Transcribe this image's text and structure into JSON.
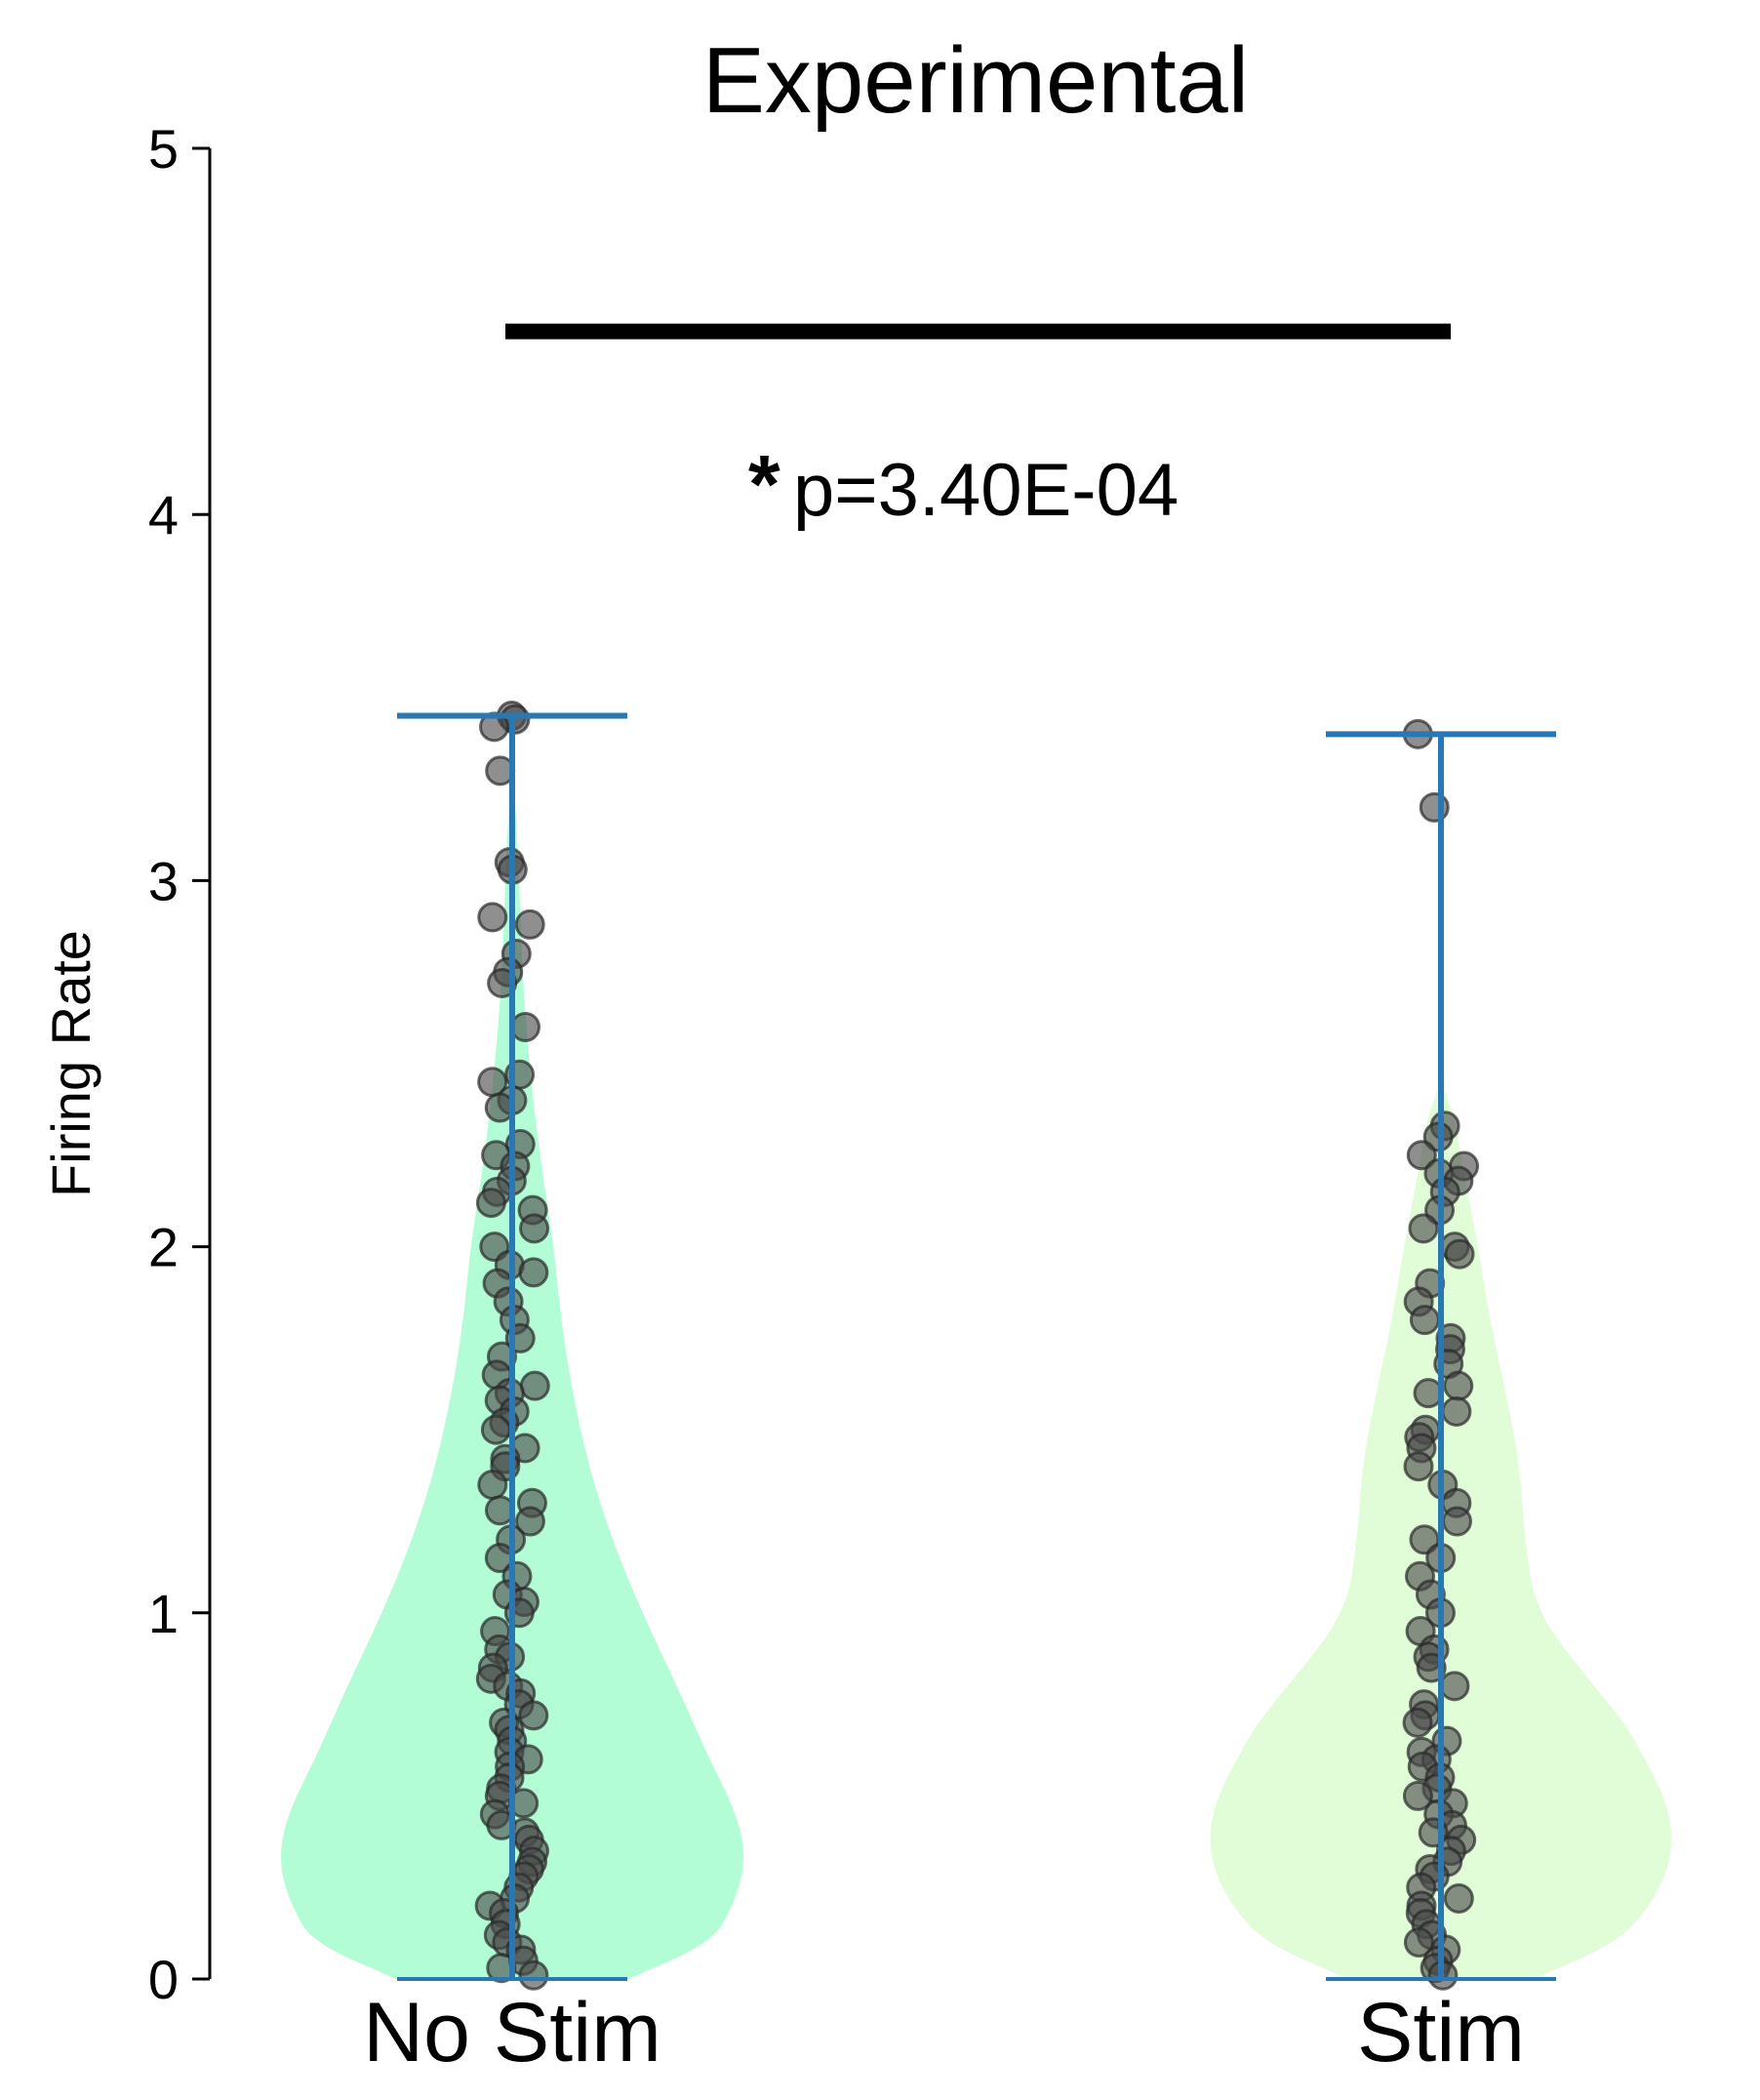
{
  "chart_data": {
    "type": "violin",
    "title": "Experimental",
    "xlabel": "",
    "ylabel": "Firing Rate",
    "ylim": [
      0,
      5
    ],
    "yticks": [
      0,
      1,
      2,
      3,
      4,
      5
    ],
    "categories": [
      "No Stim",
      "Stim"
    ],
    "grid": false,
    "colors": {
      "No Stim": "#b3fdd6",
      "Stim": "#e1fdd8",
      "whisker": "#2878b5",
      "points": "#4a4a4a",
      "bracket": "#000000"
    },
    "series": [
      {
        "category": "No Stim",
        "min": 0.0,
        "max": 3.45,
        "violin_profile": [
          [
            0.0,
            0.5
          ],
          [
            0.1,
            0.86
          ],
          [
            0.2,
            0.95
          ],
          [
            0.3,
            1.0
          ],
          [
            0.4,
            0.99
          ],
          [
            0.5,
            0.93
          ],
          [
            0.6,
            0.85
          ],
          [
            0.8,
            0.71
          ],
          [
            1.0,
            0.56
          ],
          [
            1.2,
            0.43
          ],
          [
            1.4,
            0.33
          ],
          [
            1.6,
            0.26
          ],
          [
            1.8,
            0.21
          ],
          [
            2.0,
            0.18
          ],
          [
            2.2,
            0.13
          ],
          [
            2.4,
            0.09
          ],
          [
            2.6,
            0.06
          ],
          [
            2.8,
            0.04
          ],
          [
            3.0,
            0.03
          ],
          [
            3.2,
            0.015
          ],
          [
            3.3,
            0.0
          ]
        ],
        "points": [
          3.45,
          3.44,
          3.42,
          3.3,
          3.05,
          3.03,
          2.9,
          2.88,
          2.8,
          2.75,
          2.72,
          2.6,
          2.47,
          2.45,
          2.4,
          2.38,
          2.28,
          2.25,
          2.22,
          2.18,
          2.15,
          2.12,
          2.1,
          2.05,
          2.0,
          1.95,
          1.93,
          1.9,
          1.85,
          1.8,
          1.75,
          1.7,
          1.65,
          1.62,
          1.6,
          1.58,
          1.55,
          1.52,
          1.5,
          1.45,
          1.42,
          1.4,
          1.35,
          1.3,
          1.28,
          1.25,
          1.2,
          1.15,
          1.1,
          1.05,
          1.03,
          1.0,
          0.95,
          0.9,
          0.88,
          0.85,
          0.82,
          0.8,
          0.78,
          0.75,
          0.72,
          0.7,
          0.68,
          0.65,
          0.62,
          0.6,
          0.58,
          0.55,
          0.52,
          0.5,
          0.48,
          0.45,
          0.42,
          0.4,
          0.38,
          0.35,
          0.32,
          0.3,
          0.28,
          0.25,
          0.22,
          0.2,
          0.18,
          0.15,
          0.12,
          0.1,
          0.08,
          0.05,
          0.03,
          0.01
        ]
      },
      {
        "category": "Stim",
        "min": 0.0,
        "max": 3.4,
        "violin_profile": [
          [
            0.0,
            0.4
          ],
          [
            0.1,
            0.76
          ],
          [
            0.2,
            0.9
          ],
          [
            0.3,
            0.98
          ],
          [
            0.4,
            1.0
          ],
          [
            0.5,
            0.96
          ],
          [
            0.6,
            0.88
          ],
          [
            0.7,
            0.79
          ],
          [
            0.8,
            0.66
          ],
          [
            1.0,
            0.41
          ],
          [
            1.2,
            0.36
          ],
          [
            1.4,
            0.34
          ],
          [
            1.6,
            0.28
          ],
          [
            1.8,
            0.21
          ],
          [
            2.0,
            0.16
          ],
          [
            2.2,
            0.1
          ],
          [
            2.35,
            0.06
          ],
          [
            2.45,
            0.0
          ]
        ],
        "points": [
          3.4,
          3.2,
          2.33,
          2.3,
          2.25,
          2.22,
          2.2,
          2.18,
          2.15,
          2.1,
          2.05,
          2.0,
          1.98,
          1.9,
          1.85,
          1.8,
          1.75,
          1.72,
          1.68,
          1.62,
          1.6,
          1.55,
          1.5,
          1.48,
          1.45,
          1.4,
          1.35,
          1.3,
          1.25,
          1.2,
          1.15,
          1.1,
          1.05,
          1.0,
          0.95,
          0.9,
          0.88,
          0.85,
          0.8,
          0.75,
          0.72,
          0.7,
          0.65,
          0.62,
          0.6,
          0.58,
          0.55,
          0.52,
          0.5,
          0.48,
          0.45,
          0.42,
          0.4,
          0.38,
          0.35,
          0.32,
          0.3,
          0.28,
          0.25,
          0.22,
          0.2,
          0.18,
          0.15,
          0.12,
          0.1,
          0.08,
          0.05,
          0.03,
          0.01
        ]
      }
    ],
    "annotations": {
      "significance_bracket_y": 4.5,
      "star": "*",
      "p_text": "p=3.40E-04"
    }
  }
}
